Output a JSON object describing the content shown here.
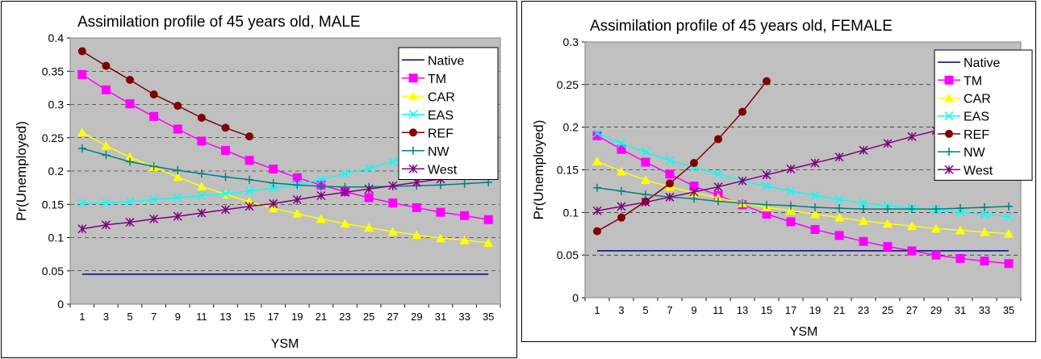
{
  "chart_data": [
    {
      "type": "line",
      "title": "Assimilation profile of 45 years old, MALE",
      "xlabel": "YSM",
      "ylabel": "Pr(Unemployed)",
      "x": [
        1,
        3,
        5,
        7,
        9,
        11,
        13,
        15,
        17,
        19,
        21,
        23,
        25,
        27,
        29,
        31,
        33,
        35
      ],
      "ylim": [
        0,
        0.4
      ],
      "yticks": [
        "0",
        "0.05",
        "0.1",
        "0.15",
        "0.2",
        "0.25",
        "0.3",
        "0.35",
        "0.4"
      ],
      "grid": true,
      "legend_position": "top-right",
      "series": [
        {
          "name": "Native",
          "color": "#000080",
          "marker": "none",
          "values": [
            0.045,
            0.045,
            0.045,
            0.045,
            0.045,
            0.045,
            0.045,
            0.045,
            0.045,
            0.045,
            0.045,
            0.045,
            0.045,
            0.045,
            0.045,
            0.045,
            0.045,
            0.045
          ]
        },
        {
          "name": "TM",
          "color": "#ff00ff",
          "marker": "square",
          "values": [
            0.345,
            0.322,
            0.301,
            0.282,
            0.263,
            0.245,
            0.231,
            0.216,
            0.203,
            0.19,
            0.179,
            0.169,
            0.16,
            0.152,
            0.145,
            0.138,
            0.133,
            0.127
          ]
        },
        {
          "name": "CAR",
          "color": "#ffff00",
          "marker": "triangle",
          "values": [
            0.258,
            0.238,
            0.221,
            0.206,
            0.191,
            0.177,
            0.165,
            0.154,
            0.144,
            0.136,
            0.128,
            0.121,
            0.115,
            0.109,
            0.104,
            0.099,
            0.096,
            0.092
          ]
        },
        {
          "name": "EAS",
          "color": "#00ffff",
          "marker": "x",
          "values": [
            0.152,
            0.152,
            0.154,
            0.157,
            0.16,
            0.163,
            0.166,
            0.17,
            0.174,
            0.18,
            0.187,
            0.196,
            0.204,
            0.214,
            0.225,
            0.237,
            0.25,
            0.262
          ]
        },
        {
          "name": "REF",
          "color": "#800000",
          "marker": "circle",
          "values": [
            0.38,
            0.358,
            0.337,
            0.315,
            0.298,
            0.28,
            0.265,
            0.252,
            null,
            null,
            null,
            null,
            null,
            null,
            null,
            null,
            null,
            null
          ]
        },
        {
          "name": "NW",
          "color": "#008080",
          "marker": "plus",
          "values": [
            0.234,
            0.224,
            0.214,
            0.207,
            0.201,
            0.196,
            0.191,
            0.187,
            0.182,
            0.179,
            0.177,
            0.176,
            0.176,
            0.177,
            0.178,
            0.179,
            0.181,
            0.183
          ]
        },
        {
          "name": "West",
          "color": "#800080",
          "marker": "star",
          "values": [
            0.113,
            0.119,
            0.123,
            0.128,
            0.132,
            0.137,
            0.142,
            0.147,
            0.151,
            0.157,
            0.163,
            0.168,
            0.173,
            0.178,
            0.183,
            0.188,
            0.194,
            0.2
          ]
        }
      ]
    },
    {
      "type": "line",
      "title": "Assimilation profile of 45 years old, FEMALE",
      "xlabel": "YSM",
      "ylabel": "Pr(Unemployed)",
      "x": [
        1,
        3,
        5,
        7,
        9,
        11,
        13,
        15,
        17,
        19,
        21,
        23,
        25,
        27,
        29,
        31,
        33,
        35
      ],
      "ylim": [
        0,
        0.3
      ],
      "yticks": [
        "0",
        "0.05",
        "0.1",
        "0.15",
        "0.2",
        "0.25",
        "0.3"
      ],
      "grid": true,
      "legend_position": "top-right",
      "series": [
        {
          "name": "Native",
          "color": "#000080",
          "marker": "none",
          "values": [
            0.055,
            0.055,
            0.055,
            0.055,
            0.055,
            0.055,
            0.055,
            0.055,
            0.055,
            0.055,
            0.055,
            0.055,
            0.055,
            0.055,
            0.055,
            0.055,
            0.055,
            0.055
          ]
        },
        {
          "name": "TM",
          "color": "#ff00ff",
          "marker": "square",
          "values": [
            0.19,
            0.174,
            0.159,
            0.145,
            0.131,
            0.12,
            0.109,
            0.098,
            0.089,
            0.08,
            0.073,
            0.066,
            0.06,
            0.055,
            0.05,
            0.046,
            0.043,
            0.04
          ]
        },
        {
          "name": "CAR",
          "color": "#ffff00",
          "marker": "triangle",
          "values": [
            0.16,
            0.148,
            0.138,
            0.13,
            0.123,
            0.117,
            0.111,
            0.106,
            0.102,
            0.098,
            0.094,
            0.09,
            0.087,
            0.084,
            0.081,
            0.079,
            0.077,
            0.075
          ]
        },
        {
          "name": "EAS",
          "color": "#00ffff",
          "marker": "x",
          "values": [
            0.193,
            0.181,
            0.171,
            0.161,
            0.153,
            0.145,
            0.137,
            0.131,
            0.125,
            0.12,
            0.115,
            0.111,
            0.108,
            0.105,
            0.103,
            0.1,
            0.098,
            0.095
          ]
        },
        {
          "name": "REF",
          "color": "#800000",
          "marker": "circle",
          "values": [
            0.078,
            0.094,
            0.113,
            0.134,
            0.158,
            0.186,
            0.218,
            0.254,
            null,
            null,
            null,
            null,
            null,
            null,
            null,
            null,
            null,
            null
          ]
        },
        {
          "name": "NW",
          "color": "#008080",
          "marker": "plus",
          "values": [
            0.129,
            0.125,
            0.121,
            0.118,
            0.116,
            0.113,
            0.111,
            0.109,
            0.108,
            0.106,
            0.105,
            0.104,
            0.104,
            0.104,
            0.104,
            0.105,
            0.106,
            0.107
          ]
        },
        {
          "name": "West",
          "color": "#800080",
          "marker": "star",
          "values": [
            0.102,
            0.107,
            0.112,
            0.118,
            0.124,
            0.13,
            0.137,
            0.144,
            0.151,
            0.158,
            0.165,
            0.173,
            0.181,
            0.189,
            0.196,
            0.204,
            0.212,
            0.22
          ]
        }
      ]
    }
  ]
}
